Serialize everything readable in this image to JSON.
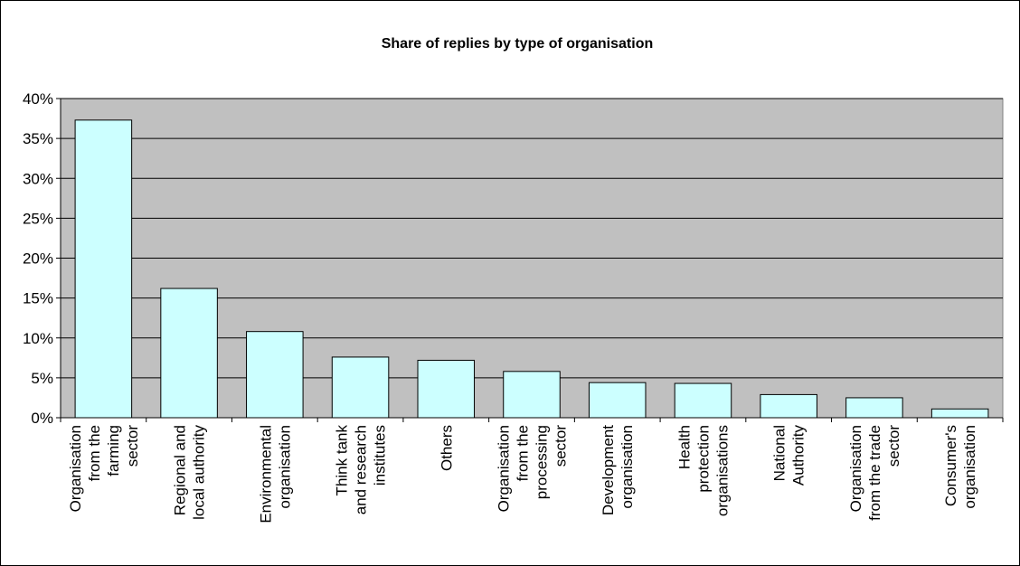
{
  "chart_data": {
    "type": "bar",
    "title": "Share of replies by type of organisation",
    "xlabel": "",
    "ylabel": "",
    "ylim": [
      0,
      40
    ],
    "y_ticks": [
      "0%",
      "5%",
      "10%",
      "15%",
      "20%",
      "25%",
      "30%",
      "35%",
      "40%"
    ],
    "grid": true,
    "legend": "none",
    "categories": [
      [
        "Organisation",
        "from the",
        "farming",
        "sector"
      ],
      [
        "Regional and",
        "local authority"
      ],
      [
        "Environmental",
        "organisation"
      ],
      [
        "Think tank",
        "and research",
        "institutes"
      ],
      [
        "Others"
      ],
      [
        "Organisation",
        "from the",
        "processing",
        "sector"
      ],
      [
        "Development",
        "organisation"
      ],
      [
        "Health",
        "protection",
        "organisations"
      ],
      [
        "National",
        "Authority"
      ],
      [
        "Organisation",
        "from the trade",
        "sector"
      ],
      [
        "Consumer's",
        "organisation"
      ]
    ],
    "values": [
      37.3,
      16.2,
      10.8,
      7.6,
      7.2,
      5.8,
      4.4,
      4.3,
      2.9,
      2.5,
      1.1
    ],
    "colors": {
      "plot_background": "#c0c0c0",
      "bar_fill": "#ccffff",
      "bar_stroke": "#000000",
      "grid": "#000000"
    }
  }
}
